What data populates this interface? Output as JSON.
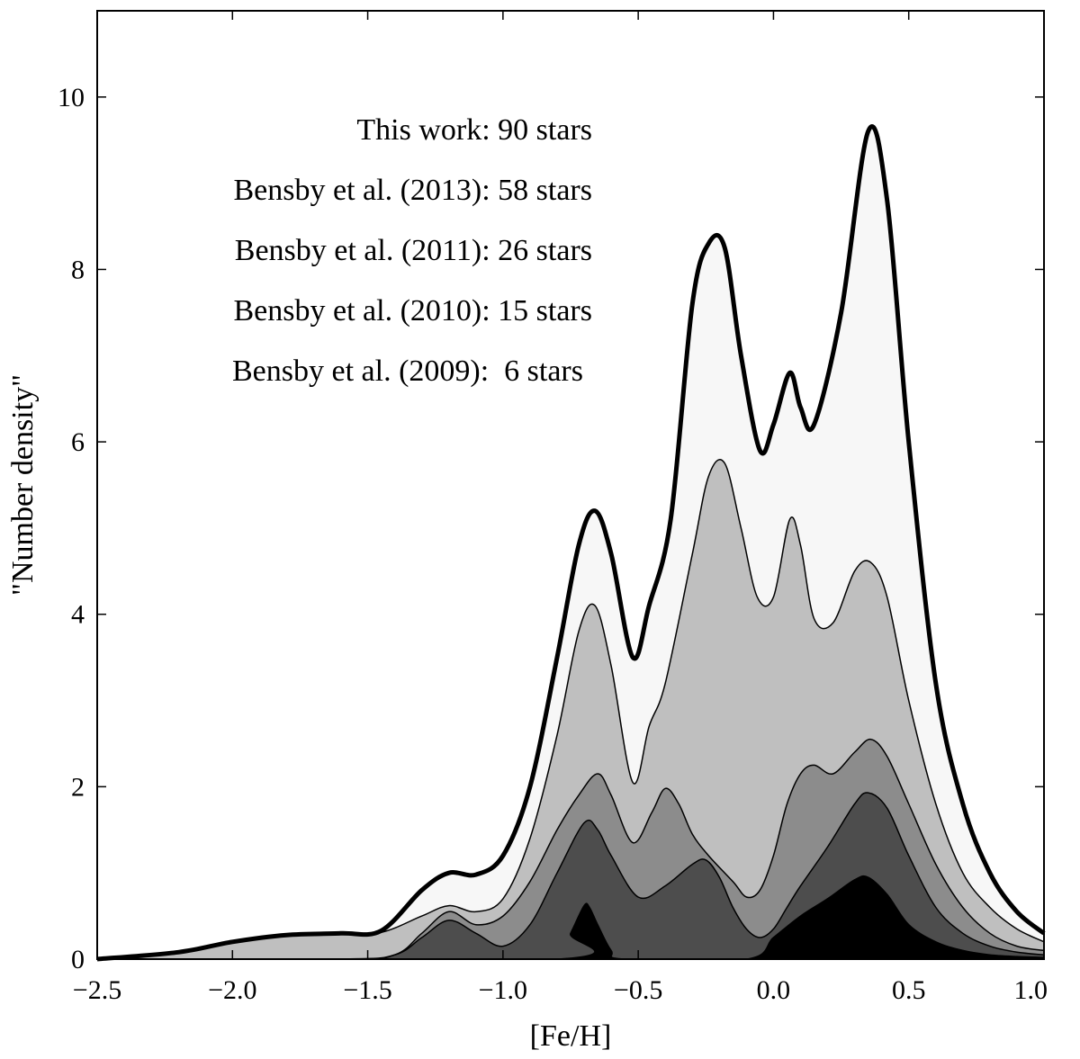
{
  "chart_data": {
    "type": "area",
    "xlabel": "[Fe/H]",
    "ylabel": "\"Number density\"",
    "xlim": [
      -2.5,
      1.0
    ],
    "ylim": [
      0,
      11
    ],
    "x_ticks": [
      -2.5,
      -2.0,
      -1.5,
      -1.0,
      -0.5,
      0.0,
      0.5,
      1.0
    ],
    "x_tick_labels": [
      "−2.5",
      "−2.0",
      "−1.5",
      "−1.0",
      "−0.5",
      "0.0",
      "0.5",
      "1.0"
    ],
    "y_ticks": [
      0,
      2,
      4,
      6,
      8,
      10
    ],
    "y_tick_labels": [
      "0",
      "2",
      "4",
      "6",
      "8",
      "10"
    ],
    "grid": false,
    "legend_placement": "top-left",
    "annotations": [
      "This work: 90 stars",
      "Bensby et al. (2013): 58 stars",
      "Bensby et al. (2011): 26 stars",
      "Bensby et al. (2010): 15 stars",
      "Bensby et al. (2009):  6 stars"
    ],
    "series": [
      {
        "fill": "#f7f7f7",
        "x": [
          -2.5,
          -2.2,
          -2.0,
          -1.8,
          -1.6,
          -1.45,
          -1.3,
          -1.2,
          -1.1,
          -1.0,
          -0.9,
          -0.8,
          -0.72,
          -0.66,
          -0.6,
          -0.52,
          -0.46,
          -0.38,
          -0.3,
          -0.24,
          -0.18,
          -0.12,
          -0.05,
          0.0,
          0.06,
          0.1,
          0.15,
          0.25,
          0.35,
          0.42,
          0.5,
          0.6,
          0.7,
          0.8,
          0.9,
          1.0
        ],
        "y": [
          0.0,
          0.08,
          0.2,
          0.28,
          0.3,
          0.33,
          0.8,
          1.0,
          0.98,
          1.2,
          2.0,
          3.5,
          4.8,
          5.2,
          4.7,
          3.5,
          4.1,
          5.1,
          7.6,
          8.3,
          8.25,
          7.0,
          5.9,
          6.2,
          6.8,
          6.4,
          6.2,
          7.5,
          9.6,
          8.8,
          6.0,
          3.2,
          1.8,
          1.0,
          0.55,
          0.3
        ]
      },
      {
        "fill": "#bfbfbf",
        "x": [
          -2.5,
          -2.2,
          -2.0,
          -1.8,
          -1.6,
          -1.45,
          -1.3,
          -1.2,
          -1.1,
          -1.0,
          -0.9,
          -0.8,
          -0.72,
          -0.66,
          -0.6,
          -0.52,
          -0.46,
          -0.4,
          -0.3,
          -0.24,
          -0.18,
          -0.12,
          -0.06,
          0.0,
          0.06,
          0.1,
          0.15,
          0.22,
          0.3,
          0.36,
          0.42,
          0.5,
          0.6,
          0.7,
          0.8,
          0.9,
          1.0
        ],
        "y": [
          0.0,
          0.08,
          0.2,
          0.28,
          0.3,
          0.31,
          0.5,
          0.62,
          0.55,
          0.7,
          1.4,
          2.6,
          3.8,
          4.1,
          3.4,
          2.05,
          2.7,
          3.2,
          4.7,
          5.6,
          5.75,
          5.0,
          4.2,
          4.2,
          5.1,
          4.8,
          3.95,
          3.9,
          4.5,
          4.6,
          4.2,
          3.0,
          1.8,
          1.0,
          0.6,
          0.35,
          0.2
        ]
      },
      {
        "fill": "#8c8c8c",
        "x": [
          -2.5,
          -1.6,
          -1.4,
          -1.3,
          -1.2,
          -1.1,
          -1.0,
          -0.9,
          -0.8,
          -0.72,
          -0.65,
          -0.6,
          -0.52,
          -0.45,
          -0.4,
          -0.35,
          -0.3,
          -0.24,
          -0.15,
          -0.1,
          -0.05,
          0.0,
          0.05,
          0.1,
          0.15,
          0.22,
          0.3,
          0.36,
          0.42,
          0.5,
          0.6,
          0.7,
          0.8,
          0.9,
          1.0
        ],
        "y": [
          0.0,
          0.0,
          0.05,
          0.3,
          0.55,
          0.4,
          0.5,
          0.9,
          1.5,
          1.9,
          2.15,
          1.9,
          1.35,
          1.7,
          1.98,
          1.8,
          1.45,
          1.2,
          0.9,
          0.72,
          0.8,
          1.2,
          1.8,
          2.15,
          2.25,
          2.15,
          2.4,
          2.55,
          2.35,
          1.8,
          1.1,
          0.6,
          0.3,
          0.15,
          0.1
        ]
      },
      {
        "fill": "#4d4d4d",
        "x": [
          -2.5,
          -1.6,
          -1.4,
          -1.3,
          -1.2,
          -1.1,
          -1.0,
          -0.9,
          -0.8,
          -0.7,
          -0.65,
          -0.6,
          -0.5,
          -0.4,
          -0.3,
          -0.25,
          -0.2,
          -0.15,
          -0.1,
          -0.05,
          0.0,
          0.05,
          0.1,
          0.2,
          0.3,
          0.35,
          0.42,
          0.5,
          0.6,
          0.7,
          0.8,
          0.9,
          1.0
        ],
        "y": [
          0.0,
          0.0,
          0.05,
          0.25,
          0.45,
          0.3,
          0.15,
          0.4,
          1.0,
          1.58,
          1.5,
          1.2,
          0.72,
          0.85,
          1.1,
          1.15,
          0.95,
          0.6,
          0.35,
          0.25,
          0.35,
          0.6,
          0.85,
          1.3,
          1.8,
          1.93,
          1.75,
          1.2,
          0.6,
          0.3,
          0.15,
          0.08,
          0.05
        ]
      },
      {
        "fill": "#000000",
        "x": [
          -2.5,
          -0.8,
          -0.75,
          -0.7,
          -0.68,
          -0.65,
          -0.6,
          -0.55,
          -0.1,
          0.0,
          0.1,
          0.2,
          0.3,
          0.35,
          0.42,
          0.5,
          0.6,
          0.7,
          0.8,
          0.9,
          1.0
        ],
        "y": [
          0.0,
          0.0,
          0.3,
          0.62,
          0.6,
          0.4,
          0.1,
          0.0,
          0.0,
          0.25,
          0.5,
          0.7,
          0.92,
          0.95,
          0.75,
          0.4,
          0.2,
          0.1,
          0.05,
          0.03,
          0.02
        ]
      }
    ]
  }
}
